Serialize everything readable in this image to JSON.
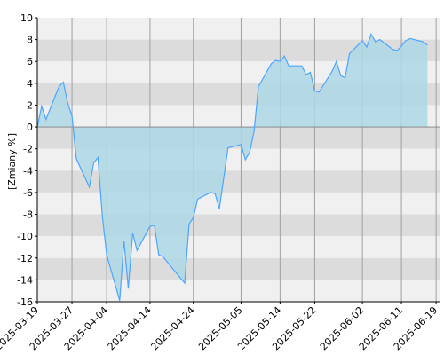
{
  "chart_data": {
    "type": "area",
    "title": "",
    "xlabel": "",
    "ylabel": "[Zmiany %]",
    "ylim": [
      -16,
      10
    ],
    "ytick_step": 2,
    "grid": true,
    "x_tick_labels": [
      "2025-03-19",
      "2025-03-27",
      "2025-04-04",
      "2025-04-14",
      "2025-04-24",
      "2025-05-05",
      "2025-05-14",
      "2025-05-22",
      "2025-06-02",
      "2025-06-11",
      "2025-06-19"
    ],
    "x_ticks": [
      "2025-03-19",
      "2025-03-27",
      "2025-04-04",
      "2025-04-14",
      "2025-04-24",
      "2025-05-05",
      "2025-05-14",
      "2025-05-22",
      "2025-06-02",
      "2025-06-11",
      "2025-06-19"
    ],
    "xlim": [
      "2025-03-19",
      "2025-06-20"
    ],
    "series": [
      {
        "values": [
          [
            "2025-03-19",
            0.0
          ],
          [
            "2025-03-20",
            1.9
          ],
          [
            "2025-03-21",
            0.7
          ],
          [
            "2025-03-24",
            3.7
          ],
          [
            "2025-03-25",
            4.1
          ],
          [
            "2025-03-26",
            2.2
          ],
          [
            "2025-03-27",
            1.0
          ],
          [
            "2025-03-28",
            -2.9
          ],
          [
            "2025-03-31",
            -5.5
          ],
          [
            "2025-04-01",
            -3.3
          ],
          [
            "2025-04-02",
            -2.8
          ],
          [
            "2025-04-03",
            -8.1
          ],
          [
            "2025-04-04",
            -11.7
          ],
          [
            "2025-04-07",
            -15.9
          ],
          [
            "2025-04-08",
            -10.4
          ],
          [
            "2025-04-09",
            -14.8
          ],
          [
            "2025-04-10",
            -9.7
          ],
          [
            "2025-04-11",
            -11.3
          ],
          [
            "2025-04-14",
            -9.1
          ],
          [
            "2025-04-15",
            -9.0
          ],
          [
            "2025-04-16",
            -11.7
          ],
          [
            "2025-04-17",
            -11.9
          ],
          [
            "2025-04-22",
            -14.3
          ],
          [
            "2025-04-23",
            -8.9
          ],
          [
            "2025-04-24",
            -8.3
          ],
          [
            "2025-04-25",
            -6.6
          ],
          [
            "2025-04-28",
            -6.0
          ],
          [
            "2025-04-29",
            -6.1
          ],
          [
            "2025-04-30",
            -7.5
          ],
          [
            "2025-05-02",
            -1.9
          ],
          [
            "2025-05-05",
            -1.6
          ],
          [
            "2025-05-06",
            -3.0
          ],
          [
            "2025-05-07",
            -2.3
          ],
          [
            "2025-05-08",
            -0.4
          ],
          [
            "2025-05-09",
            3.7
          ],
          [
            "2025-05-12",
            5.8
          ],
          [
            "2025-05-13",
            6.1
          ],
          [
            "2025-05-14",
            6.0
          ],
          [
            "2025-05-15",
            6.5
          ],
          [
            "2025-05-16",
            5.6
          ],
          [
            "2025-05-19",
            5.6
          ],
          [
            "2025-05-20",
            4.8
          ],
          [
            "2025-05-21",
            5.0
          ],
          [
            "2025-05-22",
            3.3
          ],
          [
            "2025-05-23",
            3.2
          ],
          [
            "2025-05-26",
            5.1
          ],
          [
            "2025-05-27",
            6.0
          ],
          [
            "2025-05-28",
            4.7
          ],
          [
            "2025-05-29",
            4.5
          ],
          [
            "2025-05-30",
            6.7
          ],
          [
            "2025-06-02",
            7.9
          ],
          [
            "2025-06-03",
            7.3
          ],
          [
            "2025-06-04",
            8.5
          ],
          [
            "2025-06-05",
            7.8
          ],
          [
            "2025-06-06",
            8.0
          ],
          [
            "2025-06-09",
            7.1
          ],
          [
            "2025-06-10",
            7.0
          ],
          [
            "2025-06-11",
            7.4
          ],
          [
            "2025-06-12",
            7.9
          ],
          [
            "2025-06-13",
            8.1
          ],
          [
            "2025-06-16",
            7.8
          ],
          [
            "2025-06-17",
            7.5
          ]
        ]
      }
    ],
    "colors": {
      "fill": "#add8e6",
      "line": "#4da6ff",
      "band_light": "#f0f0f0",
      "band_dark": "#dcdcdc",
      "vgrid": "#a0a0a0",
      "zero_line": "#808080"
    }
  }
}
